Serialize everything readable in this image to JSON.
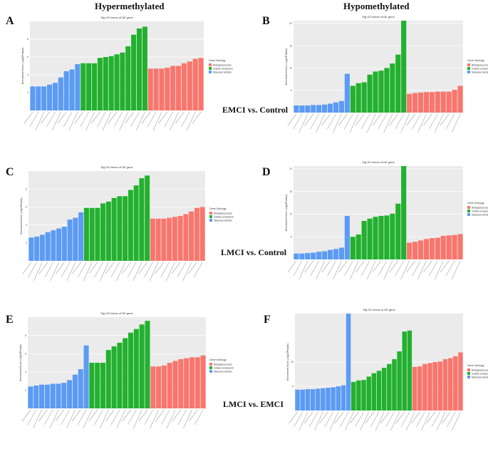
{
  "figure": {
    "col_titles": [
      "Hypermethylated",
      "Hypomethylated"
    ],
    "comparisons": [
      "EMCI vs. Control",
      "LMCI vs. Control",
      "LMCI vs. EMCI"
    ],
    "panel_letters": [
      "A",
      "B",
      "C",
      "D",
      "E",
      "F"
    ]
  },
  "chart_data": [
    {
      "panel": "A",
      "type": "bar",
      "title": "Sig GO terms of DE gene",
      "ylabel": "Enrichment Score (-log10Pvalue)",
      "legend_title": "Gene Ontology",
      "legend": [
        "Biological process",
        "Cellular component",
        "Molecular function"
      ],
      "legend_colors": [
        "#f8766d",
        "#22b12e",
        "#5b9bf3"
      ],
      "ylim": [
        0,
        10
      ],
      "yticks": [
        2,
        4,
        6,
        8
      ],
      "series": [
        {
          "name": "Molecular function",
          "color": "#5b9bf3",
          "values": [
            2.7,
            2.7,
            2.7,
            2.9,
            3.1,
            3.7,
            4.4,
            4.6,
            5.2
          ]
        },
        {
          "name": "Cellular component",
          "color": "#22b12e",
          "values": [
            5.3,
            5.3,
            5.3,
            5.9,
            6.0,
            6.1,
            6.3,
            6.5,
            7.2,
            8.5,
            9.2,
            9.4
          ]
        },
        {
          "name": "Biological process",
          "color": "#f8766d",
          "values": [
            4.7,
            4.7,
            4.7,
            4.8,
            5.0,
            5.0,
            5.3,
            5.5,
            5.8,
            5.9
          ]
        }
      ]
    },
    {
      "panel": "B",
      "type": "bar",
      "title": "Sig GO terms of DE gene",
      "ylabel": "Enrichment Score (-log10Pvalue)",
      "legend_title": "Gene Ontology",
      "legend": [
        "Biological process",
        "Cellular component",
        "Molecular function"
      ],
      "legend_colors": [
        "#f8766d",
        "#22b12e",
        "#5b9bf3"
      ],
      "ylim": [
        0,
        20.6
      ],
      "yticks": [
        5,
        10,
        15,
        20
      ],
      "series": [
        {
          "name": "Molecular function",
          "color": "#5b9bf3",
          "values": [
            1.6,
            1.6,
            1.6,
            1.7,
            1.7,
            1.8,
            2.0,
            2.3,
            2.6,
            8.7
          ]
        },
        {
          "name": "Cellular component",
          "color": "#22b12e",
          "values": [
            6.0,
            6.6,
            6.8,
            8.5,
            9.2,
            9.4,
            10.0,
            11.0,
            13.0,
            20.6
          ]
        },
        {
          "name": "Biological process",
          "color": "#f8766d",
          "values": [
            4.2,
            4.4,
            4.5,
            4.6,
            4.6,
            4.7,
            4.7,
            4.7,
            5.1,
            6.0
          ]
        }
      ]
    },
    {
      "panel": "C",
      "type": "bar",
      "title": "Sig GO terms of DE gene",
      "ylabel": "Enrichment Score (-log10Pvalue)",
      "legend_title": "Gene Ontology",
      "legend": [
        "Biological process",
        "Cellular component",
        "Molecular function"
      ],
      "legend_colors": [
        "#f8766d",
        "#22b12e",
        "#5b9bf3"
      ],
      "ylim": [
        0,
        10
      ],
      "yticks": [
        2,
        4,
        6,
        8
      ],
      "series": [
        {
          "name": "Molecular function",
          "color": "#5b9bf3",
          "values": [
            2.6,
            2.7,
            2.9,
            3.2,
            3.4,
            3.6,
            3.8,
            4.6,
            4.8,
            5.4
          ]
        },
        {
          "name": "Cellular component",
          "color": "#22b12e",
          "values": [
            5.9,
            5.9,
            5.9,
            6.4,
            6.6,
            7.0,
            7.2,
            7.2,
            7.9,
            8.4,
            9.2,
            9.5
          ]
        },
        {
          "name": "Biological process",
          "color": "#f8766d",
          "values": [
            4.7,
            4.7,
            4.7,
            4.8,
            4.9,
            5.0,
            5.2,
            5.5,
            5.9,
            6.0
          ]
        }
      ]
    },
    {
      "panel": "D",
      "type": "bar",
      "title": "Sig GO terms of DE gene",
      "ylabel": "Enrichment Score (-log10Pvalue)",
      "legend_title": "Gene Ontology",
      "legend": [
        "Biological process",
        "Cellular component",
        "Molecular function"
      ],
      "legend_colors": [
        "#f8766d",
        "#22b12e",
        "#5b9bf3"
      ],
      "ylim": [
        0,
        20.6
      ],
      "yticks": [
        5,
        10,
        15,
        20
      ],
      "series": [
        {
          "name": "Molecular function",
          "color": "#5b9bf3",
          "values": [
            1.3,
            1.3,
            1.4,
            1.5,
            1.7,
            1.8,
            2.1,
            2.3,
            2.6,
            9.6
          ]
        },
        {
          "name": "Cellular component",
          "color": "#22b12e",
          "values": [
            5.0,
            5.5,
            8.5,
            9.0,
            9.4,
            9.6,
            9.7,
            10.1,
            12.3,
            20.6
          ]
        },
        {
          "name": "Biological process",
          "color": "#f8766d",
          "values": [
            3.7,
            3.9,
            4.2,
            4.5,
            4.7,
            4.8,
            5.2,
            5.3,
            5.4,
            5.6
          ]
        }
      ]
    },
    {
      "panel": "E",
      "type": "bar",
      "title": "Sig GO terms of DE gene",
      "ylabel": "Enrichment Score (-log10Pvalue)",
      "legend_title": "Gene Ontology",
      "legend": [
        "Biological process",
        "Cellular component",
        "Molecular function"
      ],
      "legend_colors": [
        "#f8766d",
        "#22b12e",
        "#5b9bf3"
      ],
      "ylim": [
        0,
        10
      ],
      "yticks": [
        2,
        4,
        6,
        8
      ],
      "series": [
        {
          "name": "Molecular function",
          "color": "#5b9bf3",
          "values": [
            2.4,
            2.5,
            2.6,
            2.6,
            2.7,
            2.7,
            2.8,
            3.1,
            3.7,
            4.3,
            6.9
          ]
        },
        {
          "name": "Cellular component",
          "color": "#22b12e",
          "values": [
            5.0,
            5.0,
            5.0,
            6.4,
            6.8,
            7.2,
            7.7,
            8.3,
            8.7,
            9.2,
            9.6
          ]
        },
        {
          "name": "Biological process",
          "color": "#f8766d",
          "values": [
            4.6,
            4.6,
            4.7,
            5.0,
            5.2,
            5.4,
            5.5,
            5.6,
            5.6,
            5.8
          ]
        }
      ]
    },
    {
      "panel": "F",
      "type": "bar",
      "title": "Sig GO terms of DE gene",
      "ylabel": "Enrichment Score (-log10Pvalue)",
      "legend_title": "Gene Ontology",
      "legend": [
        "Biological process",
        "Cellular component",
        "Molecular function"
      ],
      "legend_colors": [
        "#f8766d",
        "#22b12e",
        "#5b9bf3"
      ],
      "ylim": [
        0,
        20
      ],
      "yticks": [
        5,
        10
      ],
      "series": [
        {
          "name": "Molecular function",
          "color": "#5b9bf3",
          "values": [
            4.3,
            4.3,
            4.4,
            4.4,
            4.5,
            4.6,
            4.7,
            4.8,
            5.0,
            5.2,
            20
          ]
        },
        {
          "name": "Cellular component",
          "color": "#22b12e",
          "values": [
            5.9,
            6.2,
            6.3,
            7.0,
            7.7,
            8.2,
            8.8,
            9.6,
            10.6,
            12.2,
            16.3,
            16.5
          ]
        },
        {
          "name": "Biological process",
          "color": "#f8766d",
          "values": [
            9.0,
            9.1,
            9.6,
            9.8,
            10.0,
            10.1,
            10.6,
            10.8,
            11.2,
            12.0
          ]
        }
      ]
    }
  ]
}
